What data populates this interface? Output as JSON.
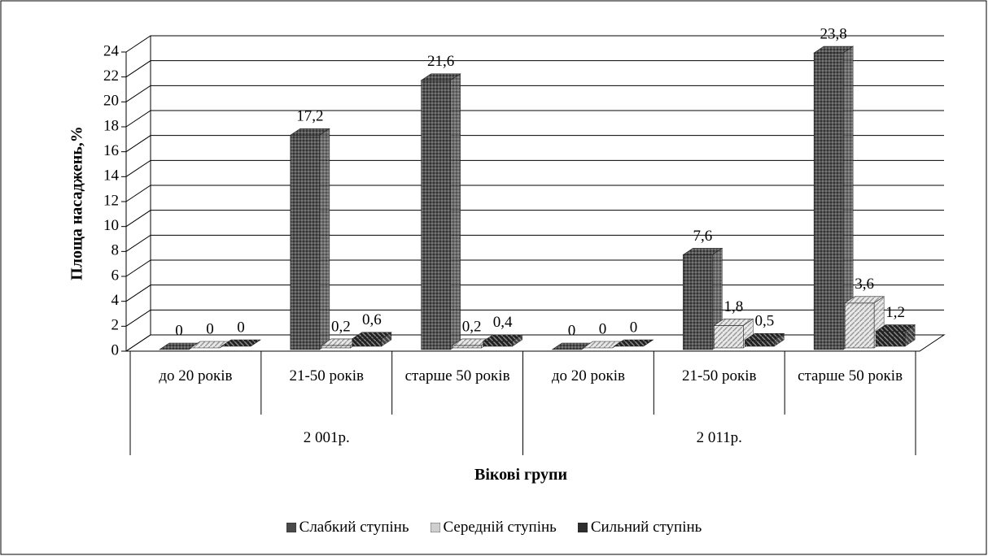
{
  "chart_data": {
    "type": "bar3d",
    "y_label": "Площа насаджень,%",
    "x_label": "Вікові групи",
    "category_groups": [
      {
        "name": "2 001р.",
        "categories": [
          "до 20 років",
          "21-50 років",
          "старше 50 років"
        ]
      },
      {
        "name": "2 011р.",
        "categories": [
          "до 20 років",
          "21-50 років",
          "старше 50 років"
        ]
      }
    ],
    "series": [
      {
        "name": "Слабкий ступінь",
        "color": "#4a4a4a",
        "values": [
          0,
          17.2,
          21.6,
          0,
          7.6,
          23.8
        ],
        "value_labels": [
          "0",
          "17,2",
          "21,6",
          "0",
          "7,6",
          "23,8"
        ]
      },
      {
        "name": "Середній ступінь",
        "color": "#cfcfcf",
        "values": [
          0,
          0.2,
          0.2,
          0,
          1.8,
          3.6
        ],
        "value_labels": [
          "0",
          "0,2",
          "0,2",
          "0",
          "1,8",
          "3,6"
        ]
      },
      {
        "name": "Сильний ступінь",
        "color": "#2e2e2e",
        "values": [
          0,
          0.6,
          0.4,
          0,
          0.5,
          1.2
        ],
        "value_labels": [
          "0",
          "0,6",
          "0,4",
          "0",
          "0,5",
          "1,2"
        ]
      }
    ],
    "ylim": [
      0,
      24
    ],
    "yticks": [
      0,
      2,
      4,
      6,
      8,
      10,
      12,
      14,
      16,
      18,
      20,
      22,
      24
    ],
    "grid": true,
    "legend": "bottom"
  }
}
